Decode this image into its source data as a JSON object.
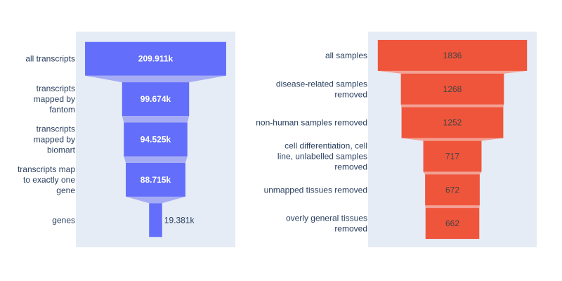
{
  "chart_data": [
    {
      "type": "funnel",
      "categories": [
        "all transcripts",
        "transcripts mapped by fantom",
        "transcripts mapped by biomart",
        "transcripts map to exactly one gene",
        "genes"
      ],
      "category_label_lines": [
        [
          "all transcripts"
        ],
        [
          "transcripts",
          "mapped by",
          "fantom"
        ],
        [
          "transcripts",
          "mapped by",
          "biomart"
        ],
        [
          "transcripts map",
          "to exactly one",
          "gene"
        ],
        [
          "genes"
        ]
      ],
      "values": [
        209911,
        99674,
        94525,
        88715,
        19381
      ],
      "value_labels": [
        "209.911k",
        "99.674k",
        "94.525k",
        "88.715k",
        "19.381k"
      ],
      "colors": {
        "bar": "#636efa",
        "connector": "#a6acf4",
        "plot_bg": "#e5ecf6"
      }
    },
    {
      "type": "funnel",
      "categories": [
        "all samples",
        "disease-related samples removed",
        "non-human samples removed",
        "cell differentiation, cell line, unlabelled samples removed",
        "unmapped tissues removed",
        "overly general tissues removed"
      ],
      "category_label_lines": [
        [
          "all samples"
        ],
        [
          "disease-related samples",
          "removed"
        ],
        [
          "non-human samples removed"
        ],
        [
          "cell differentiation, cell",
          "line, unlabelled samples",
          "removed"
        ],
        [
          "unmapped tissues removed"
        ],
        [
          "overly general tissues",
          "removed"
        ]
      ],
      "values": [
        1836,
        1268,
        1252,
        717,
        672,
        662
      ],
      "value_labels": [
        "1836",
        "1268",
        "1252",
        "717",
        "672",
        "662"
      ],
      "colors": {
        "bar": "#ef553b",
        "connector": "#f3a093",
        "plot_bg": "#e5ecf6"
      }
    }
  ]
}
